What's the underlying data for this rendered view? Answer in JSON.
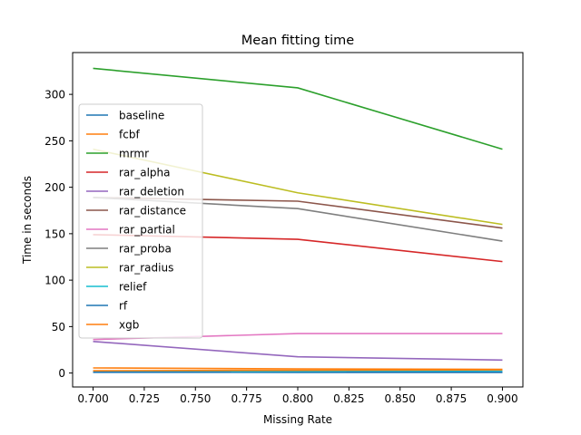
{
  "chart_data": {
    "type": "line",
    "title": "Mean fitting time",
    "xlabel": "Missing Rate",
    "ylabel": "Time in seconds",
    "x": [
      0.7,
      0.8,
      0.9
    ],
    "xlim": [
      0.69,
      0.91
    ],
    "ylim": [
      -15,
      345
    ],
    "xticks": [
      0.7,
      0.725,
      0.75,
      0.775,
      0.8,
      0.825,
      0.85,
      0.875,
      0.9
    ],
    "xtick_labels": [
      "0.700",
      "0.725",
      "0.750",
      "0.775",
      "0.800",
      "0.825",
      "0.850",
      "0.875",
      "0.900"
    ],
    "yticks": [
      0,
      50,
      100,
      150,
      200,
      250,
      300
    ],
    "ytick_labels": [
      "0",
      "50",
      "100",
      "150",
      "200",
      "250",
      "300"
    ],
    "grid": false,
    "legend_position": "center-left",
    "series": [
      {
        "name": "baseline",
        "color": "#1f77b4",
        "values": [
          1.2,
          1.0,
          0.9
        ]
      },
      {
        "name": "fcbf",
        "color": "#ff7f0e",
        "values": [
          5.5,
          4.5,
          4.0
        ]
      },
      {
        "name": "mrmr",
        "color": "#2ca02c",
        "values": [
          328,
          307,
          241
        ]
      },
      {
        "name": "rar_alpha",
        "color": "#d62728",
        "values": [
          149,
          144,
          120
        ]
      },
      {
        "name": "rar_deletion",
        "color": "#9467bd",
        "values": [
          34,
          17.5,
          14
        ]
      },
      {
        "name": "rar_distance",
        "color": "#8c564b",
        "values": [
          189,
          185,
          156
        ]
      },
      {
        "name": "rar_partial",
        "color": "#e377c2",
        "values": [
          36,
          42.5,
          42.5
        ]
      },
      {
        "name": "rar_proba",
        "color": "#7f7f7f",
        "values": [
          189,
          177,
          142
        ]
      },
      {
        "name": "rar_radius",
        "color": "#bcbd22",
        "values": [
          241,
          194,
          160
        ]
      },
      {
        "name": "relief",
        "color": "#17becf",
        "values": [
          1.5,
          2.0,
          2.5
        ]
      },
      {
        "name": "rf",
        "color": "#1f77b4",
        "values": [
          0.8,
          0.7,
          0.6
        ]
      },
      {
        "name": "xgb",
        "color": "#ff7f0e",
        "values": [
          2.5,
          3.0,
          3.5
        ]
      }
    ]
  }
}
